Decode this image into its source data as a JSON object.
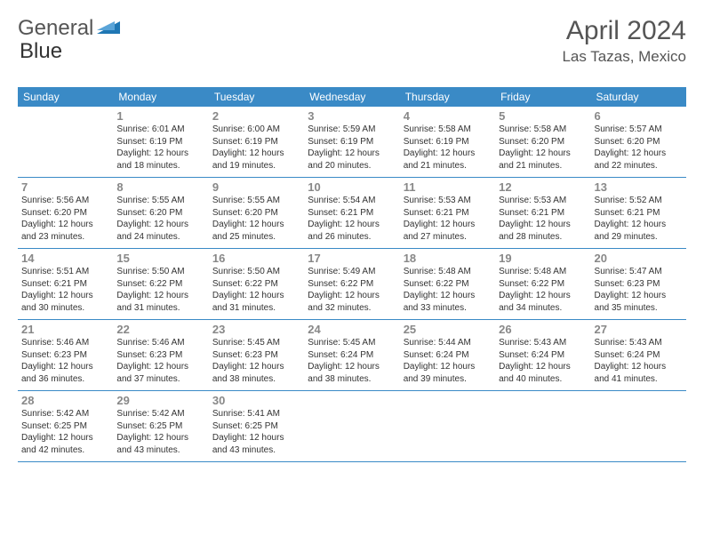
{
  "logo": {
    "text1": "General",
    "text2": "Blue"
  },
  "title": "April 2024",
  "location": "Las Tazas, Mexico",
  "colors": {
    "header_bg": "#3a8ac6",
    "header_text": "#ffffff",
    "day_num": "#888888",
    "body_text": "#333333",
    "logo_icon": "#1f77b4"
  },
  "day_headers": [
    "Sunday",
    "Monday",
    "Tuesday",
    "Wednesday",
    "Thursday",
    "Friday",
    "Saturday"
  ],
  "weeks": [
    [
      null,
      {
        "n": "1",
        "sr": "Sunrise: 6:01 AM",
        "ss": "Sunset: 6:19 PM",
        "dl1": "Daylight: 12 hours",
        "dl2": "and 18 minutes."
      },
      {
        "n": "2",
        "sr": "Sunrise: 6:00 AM",
        "ss": "Sunset: 6:19 PM",
        "dl1": "Daylight: 12 hours",
        "dl2": "and 19 minutes."
      },
      {
        "n": "3",
        "sr": "Sunrise: 5:59 AM",
        "ss": "Sunset: 6:19 PM",
        "dl1": "Daylight: 12 hours",
        "dl2": "and 20 minutes."
      },
      {
        "n": "4",
        "sr": "Sunrise: 5:58 AM",
        "ss": "Sunset: 6:19 PM",
        "dl1": "Daylight: 12 hours",
        "dl2": "and 21 minutes."
      },
      {
        "n": "5",
        "sr": "Sunrise: 5:58 AM",
        "ss": "Sunset: 6:20 PM",
        "dl1": "Daylight: 12 hours",
        "dl2": "and 21 minutes."
      },
      {
        "n": "6",
        "sr": "Sunrise: 5:57 AM",
        "ss": "Sunset: 6:20 PM",
        "dl1": "Daylight: 12 hours",
        "dl2": "and 22 minutes."
      }
    ],
    [
      {
        "n": "7",
        "sr": "Sunrise: 5:56 AM",
        "ss": "Sunset: 6:20 PM",
        "dl1": "Daylight: 12 hours",
        "dl2": "and 23 minutes."
      },
      {
        "n": "8",
        "sr": "Sunrise: 5:55 AM",
        "ss": "Sunset: 6:20 PM",
        "dl1": "Daylight: 12 hours",
        "dl2": "and 24 minutes."
      },
      {
        "n": "9",
        "sr": "Sunrise: 5:55 AM",
        "ss": "Sunset: 6:20 PM",
        "dl1": "Daylight: 12 hours",
        "dl2": "and 25 minutes."
      },
      {
        "n": "10",
        "sr": "Sunrise: 5:54 AM",
        "ss": "Sunset: 6:21 PM",
        "dl1": "Daylight: 12 hours",
        "dl2": "and 26 minutes."
      },
      {
        "n": "11",
        "sr": "Sunrise: 5:53 AM",
        "ss": "Sunset: 6:21 PM",
        "dl1": "Daylight: 12 hours",
        "dl2": "and 27 minutes."
      },
      {
        "n": "12",
        "sr": "Sunrise: 5:53 AM",
        "ss": "Sunset: 6:21 PM",
        "dl1": "Daylight: 12 hours",
        "dl2": "and 28 minutes."
      },
      {
        "n": "13",
        "sr": "Sunrise: 5:52 AM",
        "ss": "Sunset: 6:21 PM",
        "dl1": "Daylight: 12 hours",
        "dl2": "and 29 minutes."
      }
    ],
    [
      {
        "n": "14",
        "sr": "Sunrise: 5:51 AM",
        "ss": "Sunset: 6:21 PM",
        "dl1": "Daylight: 12 hours",
        "dl2": "and 30 minutes."
      },
      {
        "n": "15",
        "sr": "Sunrise: 5:50 AM",
        "ss": "Sunset: 6:22 PM",
        "dl1": "Daylight: 12 hours",
        "dl2": "and 31 minutes."
      },
      {
        "n": "16",
        "sr": "Sunrise: 5:50 AM",
        "ss": "Sunset: 6:22 PM",
        "dl1": "Daylight: 12 hours",
        "dl2": "and 31 minutes."
      },
      {
        "n": "17",
        "sr": "Sunrise: 5:49 AM",
        "ss": "Sunset: 6:22 PM",
        "dl1": "Daylight: 12 hours",
        "dl2": "and 32 minutes."
      },
      {
        "n": "18",
        "sr": "Sunrise: 5:48 AM",
        "ss": "Sunset: 6:22 PM",
        "dl1": "Daylight: 12 hours",
        "dl2": "and 33 minutes."
      },
      {
        "n": "19",
        "sr": "Sunrise: 5:48 AM",
        "ss": "Sunset: 6:22 PM",
        "dl1": "Daylight: 12 hours",
        "dl2": "and 34 minutes."
      },
      {
        "n": "20",
        "sr": "Sunrise: 5:47 AM",
        "ss": "Sunset: 6:23 PM",
        "dl1": "Daylight: 12 hours",
        "dl2": "and 35 minutes."
      }
    ],
    [
      {
        "n": "21",
        "sr": "Sunrise: 5:46 AM",
        "ss": "Sunset: 6:23 PM",
        "dl1": "Daylight: 12 hours",
        "dl2": "and 36 minutes."
      },
      {
        "n": "22",
        "sr": "Sunrise: 5:46 AM",
        "ss": "Sunset: 6:23 PM",
        "dl1": "Daylight: 12 hours",
        "dl2": "and 37 minutes."
      },
      {
        "n": "23",
        "sr": "Sunrise: 5:45 AM",
        "ss": "Sunset: 6:23 PM",
        "dl1": "Daylight: 12 hours",
        "dl2": "and 38 minutes."
      },
      {
        "n": "24",
        "sr": "Sunrise: 5:45 AM",
        "ss": "Sunset: 6:24 PM",
        "dl1": "Daylight: 12 hours",
        "dl2": "and 38 minutes."
      },
      {
        "n": "25",
        "sr": "Sunrise: 5:44 AM",
        "ss": "Sunset: 6:24 PM",
        "dl1": "Daylight: 12 hours",
        "dl2": "and 39 minutes."
      },
      {
        "n": "26",
        "sr": "Sunrise: 5:43 AM",
        "ss": "Sunset: 6:24 PM",
        "dl1": "Daylight: 12 hours",
        "dl2": "and 40 minutes."
      },
      {
        "n": "27",
        "sr": "Sunrise: 5:43 AM",
        "ss": "Sunset: 6:24 PM",
        "dl1": "Daylight: 12 hours",
        "dl2": "and 41 minutes."
      }
    ],
    [
      {
        "n": "28",
        "sr": "Sunrise: 5:42 AM",
        "ss": "Sunset: 6:25 PM",
        "dl1": "Daylight: 12 hours",
        "dl2": "and 42 minutes."
      },
      {
        "n": "29",
        "sr": "Sunrise: 5:42 AM",
        "ss": "Sunset: 6:25 PM",
        "dl1": "Daylight: 12 hours",
        "dl2": "and 43 minutes."
      },
      {
        "n": "30",
        "sr": "Sunrise: 5:41 AM",
        "ss": "Sunset: 6:25 PM",
        "dl1": "Daylight: 12 hours",
        "dl2": "and 43 minutes."
      },
      null,
      null,
      null,
      null
    ]
  ]
}
